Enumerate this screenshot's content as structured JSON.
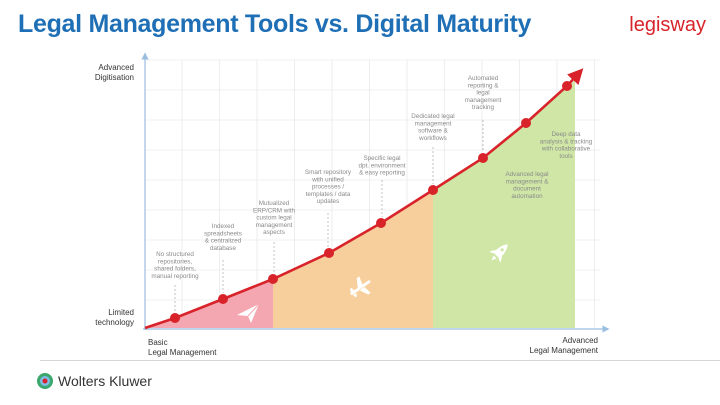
{
  "header": {
    "title": "Legal Management Tools vs. Digital Maturity",
    "brand": "legisway"
  },
  "axes": {
    "y_top": [
      "Advanced",
      "Digitisation"
    ],
    "y_bottom": [
      "Limited",
      "technology"
    ],
    "x_left": [
      "Basic",
      "Legal Management"
    ],
    "x_right": [
      "Advanced",
      "Legal Management"
    ]
  },
  "milestones": [
    {
      "lines": [
        "No structured",
        "repositories,",
        "shared folders,",
        "manual reporting"
      ]
    },
    {
      "lines": [
        "Indexed",
        "spreadsheets",
        "& centralized",
        "database"
      ]
    },
    {
      "lines": [
        "Mutualized",
        "ERP/CRM with",
        "custom legal",
        "management",
        "aspects"
      ]
    },
    {
      "lines": [
        "Smart repository",
        "with unified",
        "processes /",
        "templates / data",
        "updates"
      ]
    },
    {
      "lines": [
        "Specific legal",
        "dpt. environment",
        "& easy reporting"
      ]
    },
    {
      "lines": [
        "Dedicated legal",
        "management",
        "software &",
        "workflows"
      ]
    },
    {
      "lines": [
        "Automated",
        "reporting &",
        "legal",
        "management",
        "tracking"
      ]
    },
    {
      "lines": [
        "Deep data",
        "analysis & tracking",
        "with collaborative",
        "tools"
      ]
    }
  ],
  "zone_label": [
    "Advanced legal",
    "management &",
    "document",
    "automation"
  ],
  "zones": [
    {
      "name": "basic",
      "color": "#f4a7b0",
      "icon": "paper-plane-icon"
    },
    {
      "name": "intermediate",
      "color": "#f7cf9c",
      "icon": "airplane-icon"
    },
    {
      "name": "advanced",
      "color": "#cfe6a6",
      "icon": "rocket-icon"
    }
  ],
  "colors": {
    "curve": "#d8232a",
    "axis": "#9bbde0",
    "title": "#1e6fb5"
  },
  "footer": {
    "company": "Wolters Kluwer"
  }
}
